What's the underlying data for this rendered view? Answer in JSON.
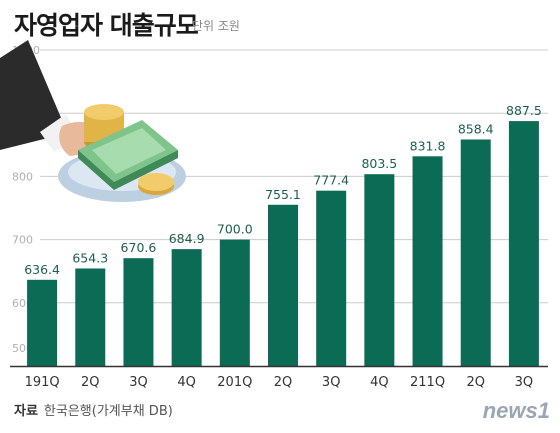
{
  "header": {
    "title": "자영업자 대출규모",
    "unit": "단위 조원"
  },
  "source": {
    "lead": "자료",
    "text": "한국은행(가계부채 DB)"
  },
  "logo": {
    "text": "news1"
  },
  "colors": {
    "bar": "#0b6b55",
    "value_label": "#1f5f50",
    "grid": "#cccccc",
    "axis": "#333333"
  },
  "chart_data": {
    "type": "bar",
    "title": "자영업자 대출규모",
    "unit": "단위 조원",
    "categories": [
      "191Q",
      "2Q",
      "3Q",
      "4Q",
      "201Q",
      "2Q",
      "3Q",
      "4Q",
      "211Q",
      "2Q",
      "3Q"
    ],
    "values": [
      636.4,
      654.3,
      670.6,
      684.9,
      700.0,
      755.1,
      777.4,
      803.5,
      831.8,
      858.4,
      887.5
    ],
    "value_labels": [
      "636.4",
      "654.3",
      "670.6",
      "684.9",
      "700.0",
      "755.1",
      "777.4",
      "803.5",
      "831.8",
      "858.4",
      "887.5"
    ],
    "y_ticks": [
      "500",
      "600",
      "700",
      "800",
      "900",
      "1000"
    ],
    "ylim": [
      500,
      1000
    ],
    "grid": true,
    "legend": "none",
    "xlabel": "",
    "ylabel": ""
  }
}
